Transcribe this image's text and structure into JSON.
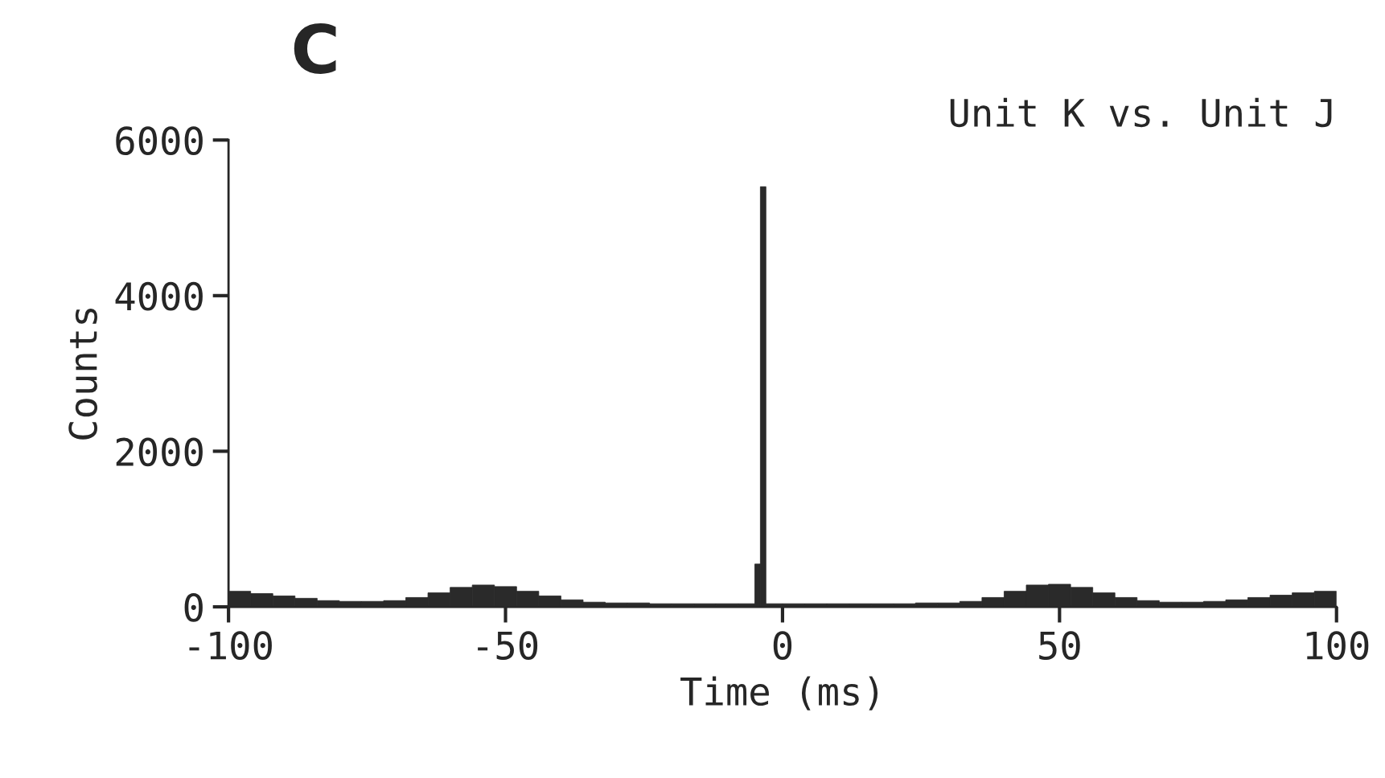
{
  "chart_data": {
    "type": "histogram",
    "title": "Unit K vs. Unit J",
    "xlabel": "Time (ms)",
    "ylabel": "Counts",
    "annotations": [
      "C"
    ],
    "bins": [
      -100,
      -96,
      -92,
      -88,
      -84,
      -80,
      -76,
      -72,
      -68,
      -64,
      -60,
      -56,
      -52,
      -48,
      -44,
      -40,
      -36,
      -32,
      -28,
      -24,
      -20,
      -16,
      -12,
      -8,
      -5,
      -4,
      -3,
      0,
      4,
      8,
      12,
      16,
      20,
      24,
      28,
      32,
      36,
      40,
      44,
      48,
      52,
      56,
      60,
      64,
      68,
      72,
      76,
      80,
      84,
      88,
      92,
      96,
      100
    ],
    "values": [
      200,
      170,
      140,
      110,
      80,
      70,
      70,
      80,
      120,
      180,
      250,
      280,
      260,
      200,
      140,
      90,
      60,
      50,
      50,
      40,
      40,
      40,
      40,
      40,
      550,
      5400,
      40,
      40,
      40,
      40,
      40,
      40,
      40,
      50,
      50,
      70,
      120,
      200,
      280,
      290,
      250,
      180,
      120,
      80,
      60,
      60,
      70,
      90,
      120,
      150,
      180,
      200
    ],
    "color": "#2a2a2a",
    "xlim": [
      -100,
      100
    ],
    "xticks": [
      -100,
      -50,
      0,
      50,
      100
    ],
    "ylim": [
      0,
      6000
    ],
    "yticks": [
      0,
      2000,
      4000,
      6000
    ],
    "grid": false,
    "legend": false
  }
}
